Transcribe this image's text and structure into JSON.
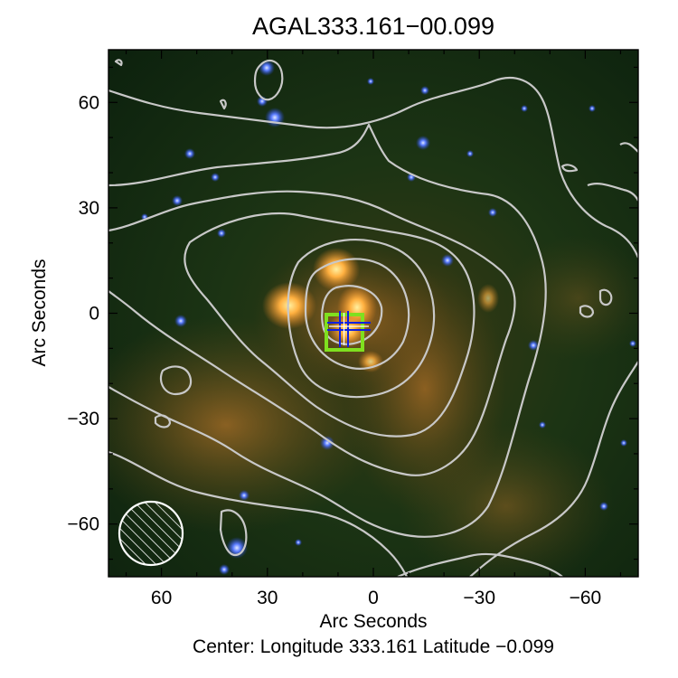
{
  "title": "AGAL333.161−00.099",
  "xlabel": "Arc Seconds",
  "ylabel": "Arc Seconds",
  "caption": "Center:  Longitude 333.161 Latitude −0.099",
  "x_ticks": [
    {
      "value": 60,
      "label": "60"
    },
    {
      "value": 30,
      "label": "30"
    },
    {
      "value": 0,
      "label": "0"
    },
    {
      "value": -30,
      "label": "−30"
    },
    {
      "value": -60,
      "label": "−60"
    }
  ],
  "y_ticks": [
    {
      "value": 60,
      "label": "60"
    },
    {
      "value": 30,
      "label": "30"
    },
    {
      "value": 0,
      "label": "0"
    },
    {
      "value": -30,
      "label": "−30"
    },
    {
      "value": -60,
      "label": "−60"
    }
  ],
  "x_range": [
    75,
    -75
  ],
  "y_range": [
    -75,
    75
  ],
  "colors": {
    "contour": "#c8c8c8",
    "box_marker": "#7fe01f",
    "cross_marker": "#1020e0",
    "background": "#0f2410",
    "emission": "#f6a43a"
  }
}
